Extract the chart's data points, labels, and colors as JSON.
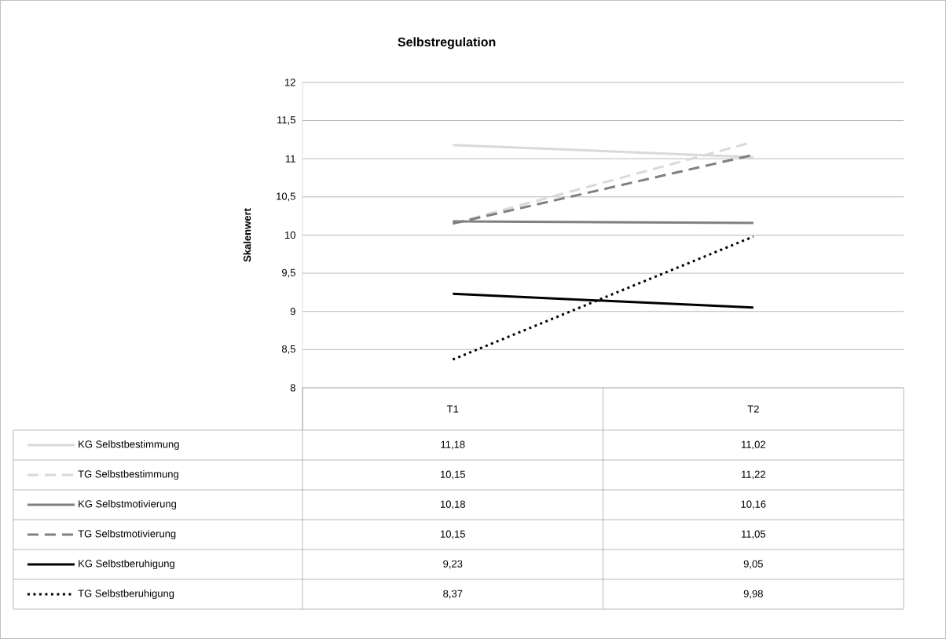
{
  "chart_data": {
    "type": "line",
    "title": "Selbstregulation",
    "ylabel": "Skalenwert",
    "categories": [
      "T1",
      "T2"
    ],
    "ylim": [
      8,
      12
    ],
    "yticks": [
      8,
      {
        "value": 8.5,
        "label": "8,5"
      },
      9,
      {
        "value": 9.5,
        "label": "9,5"
      },
      10,
      {
        "value": 10.5,
        "label": "10,5"
      },
      11,
      {
        "value": 11.5,
        "label": "11,5"
      },
      12
    ],
    "grid": "y",
    "legend": "bottom left",
    "series": [
      {
        "name": "KG Selbstbestimmung",
        "color": "#d9d9d9",
        "line_style": "solid",
        "values": [
          11.18,
          11.02
        ],
        "value_labels": [
          "11,18",
          "11,02"
        ]
      },
      {
        "name": "TG Selbstbestimmung",
        "color": "#d9d9d9",
        "line_style": "dashed",
        "values": [
          10.15,
          11.22
        ],
        "value_labels": [
          "10,15",
          "11,22"
        ]
      },
      {
        "name": "KG Selbstmotivierung",
        "color": "#808080",
        "line_style": "solid",
        "values": [
          10.18,
          10.16
        ],
        "value_labels": [
          "10,18",
          "10,16"
        ]
      },
      {
        "name": "TG Selbstmotivierung",
        "color": "#808080",
        "line_style": "dashed",
        "values": [
          10.15,
          11.05
        ],
        "value_labels": [
          "10,15",
          "11,05"
        ]
      },
      {
        "name": "KG Selbstberuhigung",
        "color": "#000000",
        "line_style": "solid",
        "values": [
          9.23,
          9.05
        ],
        "value_labels": [
          "9,23",
          "9,05"
        ]
      },
      {
        "name": "TG Selbstberuhigung",
        "color": "#000000",
        "line_style": "dotted",
        "values": [
          8.37,
          9.98
        ],
        "value_labels": [
          "8,37",
          "9,98"
        ]
      }
    ]
  }
}
